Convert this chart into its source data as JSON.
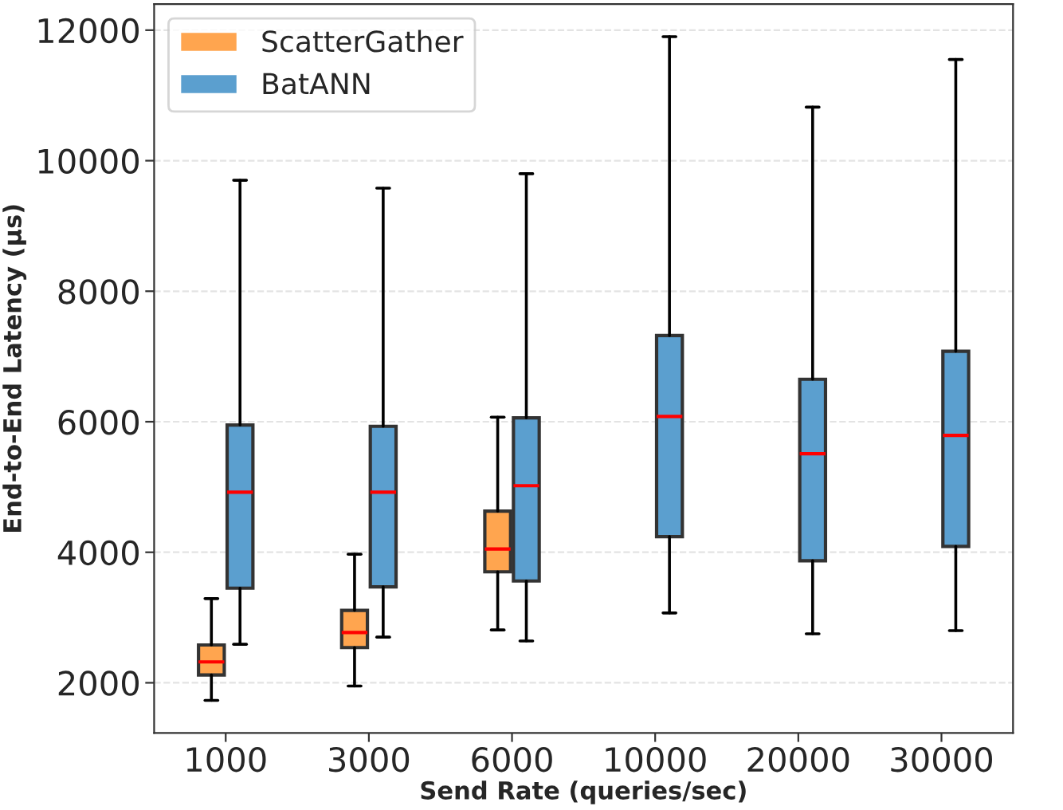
{
  "chart_data": {
    "type": "box",
    "xlabel": "Send Rate (queries/sec)",
    "ylabel": "End-to-End Latency (µs)",
    "categories": [
      "1000",
      "3000",
      "6000",
      "10000",
      "20000",
      "30000"
    ],
    "ylim": [
      1230,
      12400
    ],
    "yticks": [
      2000,
      4000,
      6000,
      8000,
      10000,
      12000
    ],
    "grid": "y",
    "legend": "top left",
    "series": [
      {
        "name": "ScatterGather",
        "color": "#ffa54f",
        "boxes": [
          {
            "low": 1730,
            "q1": 2120,
            "median": 2320,
            "q3": 2580,
            "high": 3290
          },
          {
            "low": 1950,
            "q1": 2540,
            "median": 2770,
            "q3": 3110,
            "high": 3970
          },
          {
            "low": 2810,
            "q1": 3700,
            "median": 4050,
            "q3": 4630,
            "high": 6070
          },
          null,
          null,
          null
        ]
      },
      {
        "name": "BatANN",
        "color": "#5b9fcf",
        "boxes": [
          {
            "low": 2590,
            "q1": 3450,
            "median": 4920,
            "q3": 5950,
            "high": 9700
          },
          {
            "low": 2700,
            "q1": 3470,
            "median": 4920,
            "q3": 5930,
            "high": 9580
          },
          {
            "low": 2640,
            "q1": 3560,
            "median": 5020,
            "q3": 6060,
            "high": 9800
          },
          {
            "low": 3070,
            "q1": 4240,
            "median": 6080,
            "q3": 7320,
            "high": 11900
          },
          {
            "low": 2750,
            "q1": 3870,
            "median": 5510,
            "q3": 6650,
            "high": 10820
          },
          {
            "low": 2800,
            "q1": 4090,
            "median": 5790,
            "q3": 7080,
            "high": 11550
          }
        ]
      }
    ]
  }
}
